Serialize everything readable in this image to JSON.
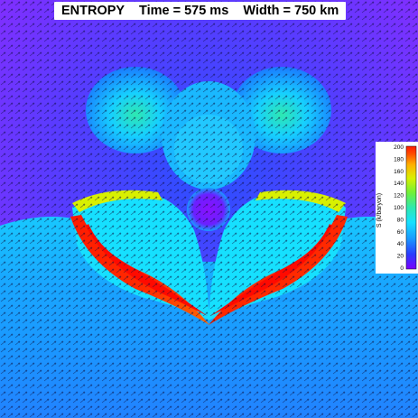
{
  "title": {
    "quantity": "ENTROPY",
    "time": "Time = 575 ms",
    "width": "Width = 750 km"
  },
  "colorbar": {
    "label": "S (k/baryon)",
    "ticks": [
      "200",
      "180",
      "160",
      "140",
      "120",
      "100",
      "80",
      "60",
      "40",
      "20",
      "0"
    ],
    "range": [
      0,
      200
    ],
    "colors": [
      "#7a00ff",
      "#2a3bff",
      "#1a9bff",
      "#16e0ff",
      "#2ee8b0",
      "#6ef03a",
      "#d8f000",
      "#ffb000",
      "#ff4a00",
      "#ff1a00"
    ]
  },
  "image": {
    "description_icon": "entropy-field",
    "background_color": "#8a2cff"
  }
}
